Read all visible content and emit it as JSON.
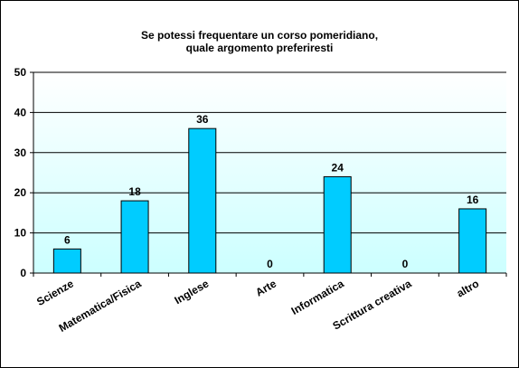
{
  "chart_data": {
    "type": "bar",
    "title_lines": [
      "Se potessi  frequentare un corso  pomeridiano,",
      "quale argomento preferiresti"
    ],
    "categories": [
      "Scienze",
      "Matematica/Fisica",
      "Inglese",
      "Arte",
      "Informatica",
      "Scrittura creativa",
      "altro"
    ],
    "values": [
      6,
      18,
      36,
      0,
      24,
      0,
      16
    ],
    "data_labels": [
      "6",
      "18",
      "36",
      "0",
      "24",
      "0",
      "16"
    ],
    "y_ticks": [
      "0",
      "10",
      "20",
      "30",
      "40",
      "50"
    ],
    "ylim": [
      0,
      50
    ],
    "grid": true,
    "legend": "none",
    "colors": {
      "bar_fill": "#00ccff",
      "bar_stroke": "#000000",
      "plot_bg_top": "#ffffff",
      "plot_bg_bottom": "#ccffff",
      "grid": "#000000"
    }
  }
}
